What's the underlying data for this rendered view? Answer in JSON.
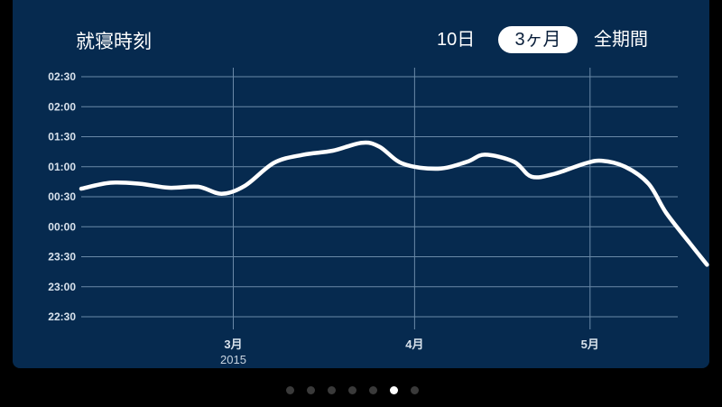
{
  "header": {
    "title": "就寝時刻",
    "ranges": [
      {
        "label": "10日",
        "selected": false
      },
      {
        "label": "3ヶ月",
        "selected": true
      },
      {
        "label": "全期間",
        "selected": false
      }
    ]
  },
  "chart_data": {
    "type": "line",
    "title": "就寝時刻",
    "y_ticks": [
      "02:30",
      "02:00",
      "01:30",
      "01:00",
      "00:30",
      "00:00",
      "23:30",
      "23:00",
      "22:30"
    ],
    "ylim_minutes_from_midnight": [
      -90,
      150
    ],
    "x_ticks": [
      {
        "label": "3月",
        "sub": "2015",
        "date": "2015-03-01"
      },
      {
        "label": "4月",
        "sub": "",
        "date": "2015-04-01"
      },
      {
        "label": "5月",
        "sub": "",
        "date": "2015-05-01"
      }
    ],
    "xlim": [
      "2015-02-03",
      "2015-05-16"
    ],
    "series": [
      {
        "name": "",
        "color": "#ffffff",
        "points": [
          [
            "2015-02-03",
            38
          ],
          [
            "2015-02-08",
            44
          ],
          [
            "2015-02-13",
            43
          ],
          [
            "2015-02-18",
            39
          ],
          [
            "2015-02-23",
            40
          ],
          [
            "2015-02-27",
            33
          ],
          [
            "2015-03-03",
            41
          ],
          [
            "2015-03-08",
            64
          ],
          [
            "2015-03-13",
            72
          ],
          [
            "2015-03-18",
            76
          ],
          [
            "2015-03-23",
            84
          ],
          [
            "2015-03-26",
            80
          ],
          [
            "2015-03-30",
            63
          ],
          [
            "2015-04-05",
            58
          ],
          [
            "2015-04-10",
            65
          ],
          [
            "2015-04-13",
            72
          ],
          [
            "2015-04-18",
            65
          ],
          [
            "2015-04-21",
            50
          ],
          [
            "2015-04-25",
            53
          ],
          [
            "2015-04-30",
            63
          ],
          [
            "2015-05-03",
            66
          ],
          [
            "2015-05-07",
            60
          ],
          [
            "2015-05-11",
            43
          ],
          [
            "2015-05-14",
            14
          ],
          [
            "2015-05-18",
            -16
          ],
          [
            "2015-05-21",
            -38
          ]
        ]
      }
    ],
    "grid": true,
    "legend": "none"
  },
  "pager": {
    "count": 7,
    "active_index": 5
  },
  "colors": {
    "background": "#062a4f",
    "grid": "#6b8aa8",
    "line": "#ffffff"
  }
}
